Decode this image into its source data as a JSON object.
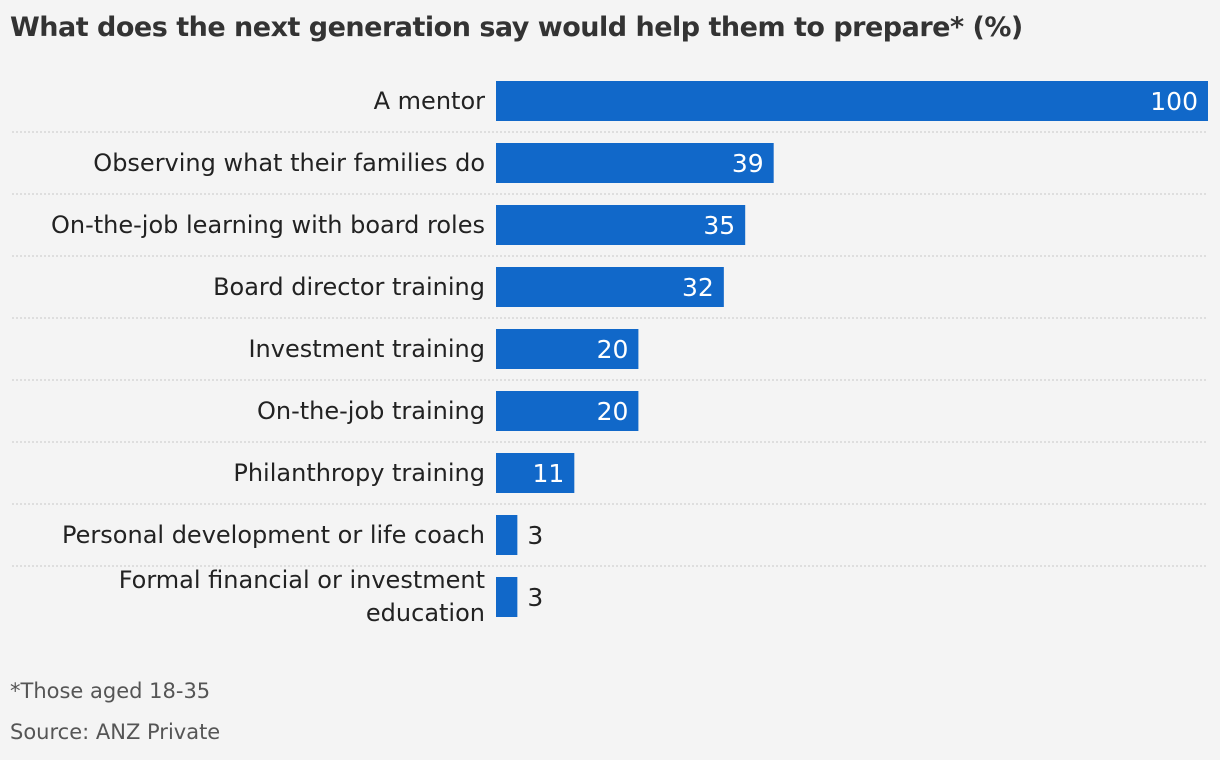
{
  "title": "What does the next generation say would help them to prepare* (%)",
  "footnote": "*Those aged 18-35",
  "source": "Source: ANZ Private",
  "colors": {
    "bar": "#1168c9",
    "background": "#f4f4f4",
    "gridline": "#c8c8c8"
  },
  "chart_data": {
    "type": "bar",
    "orientation": "horizontal",
    "categories": [
      "A mentor",
      "Observing what their families do",
      "On-the-job learning with board roles",
      "Board director training",
      "Investment training",
      "On-the-job training",
      "Philanthropy training",
      "Personal development or life coach",
      "Formal financial or investment education"
    ],
    "values": [
      100,
      39,
      35,
      32,
      20,
      20,
      11,
      3,
      3
    ],
    "xlim": [
      0,
      100
    ],
    "data_labels": true,
    "legend": "none"
  }
}
